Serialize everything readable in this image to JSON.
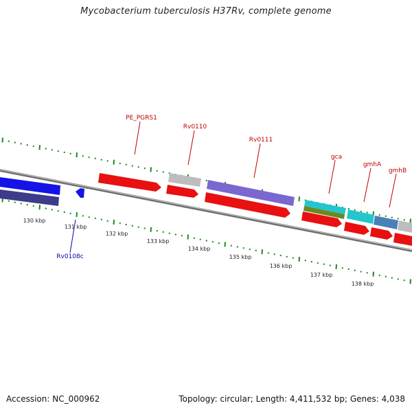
{
  "title": "Mycobacterium tuberculosis H37Rv, complete genome",
  "footer": {
    "accession": "Accession: NC_000962",
    "info": "Topology: circular; Length: 4,411,532 bp; Genes: 4,038"
  },
  "colors": {
    "tick": "#1a8a1a",
    "backbone": "#8a8a8a",
    "label_red": "#c00000",
    "label_blue": "#0000b0",
    "gene_red": "#e81010",
    "gene_blue": "#1414e6",
    "gene_navy": "#3c3c8a",
    "gene_gray": "#bdbdbd",
    "gene_lavender": "#7a68d0",
    "gene_cyan": "#22c6cc",
    "gene_olive": "#6a8a20",
    "gene_steel": "#4a80b8"
  },
  "kbp_labels": [
    "130 kbp",
    "131 kbp",
    "132 kbp",
    "133 kbp",
    "134 kbp",
    "135 kbp",
    "136 kbp",
    "137 kbp",
    "138 kbp"
  ],
  "gene_labels": [
    {
      "text": "PE_PGRS1",
      "color": "label_red"
    },
    {
      "text": "Rv0110",
      "color": "label_red"
    },
    {
      "text": "Rv0111",
      "color": "label_red"
    },
    {
      "text": "gca",
      "color": "label_red"
    },
    {
      "text": "gmhA",
      "color": "label_red"
    },
    {
      "text": "gmhB",
      "color": "label_red"
    },
    {
      "text": "Rv0108c",
      "color": "label_blue"
    }
  ],
  "icons": [
    "arrow-right-icon",
    "arrow-left-icon"
  ]
}
